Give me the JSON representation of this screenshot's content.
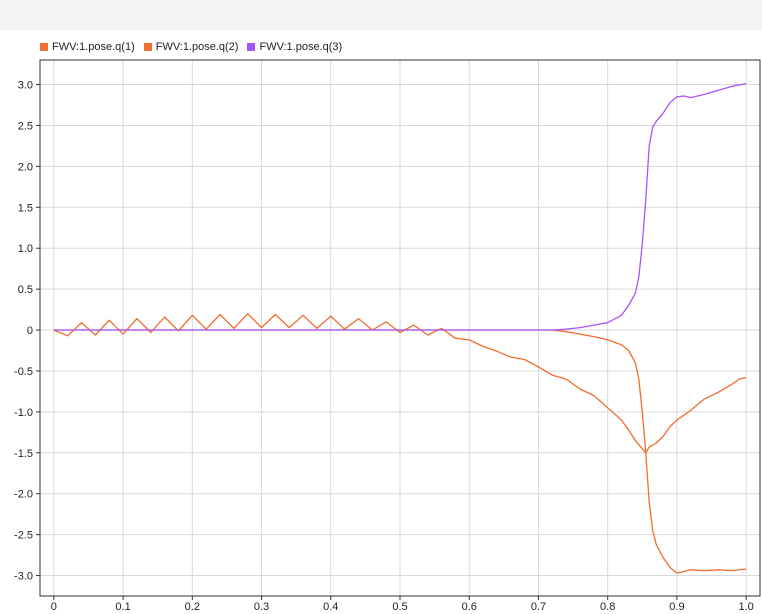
{
  "chart_data": {
    "type": "line",
    "title": "",
    "xlabel": "",
    "ylabel": "",
    "xlim": [
      -0.02,
      1.02
    ],
    "ylim": [
      -3.25,
      3.3
    ],
    "grid": true,
    "legend_position": "top-left",
    "x_ticks": [
      0,
      0.1,
      0.2,
      0.3,
      0.4,
      0.5,
      0.6,
      0.7,
      0.8,
      0.9,
      1.0
    ],
    "x_tick_labels": [
      "0",
      "0.1",
      "0.2",
      "0.3",
      "0.4",
      "0.5",
      "0.6",
      "0.7",
      "0.8",
      "0.9",
      "1.0"
    ],
    "y_ticks": [
      3.0,
      2.5,
      2.0,
      1.5,
      1.0,
      0.5,
      0,
      -0.5,
      -1.0,
      -1.5,
      -2.0,
      -2.5,
      -3.0
    ],
    "y_tick_labels": [
      "3.0",
      "2.5",
      "2.0",
      "1.5",
      "1.0",
      "0.5",
      "0",
      "-0.5",
      "-1.0",
      "-1.5",
      "-2.0",
      "-2.5",
      "-3.0"
    ],
    "series": [
      {
        "name": "FWV:1.pose.q(1)",
        "color": "#f26c2d",
        "x": [
          0,
          0.02,
          0.04,
          0.06,
          0.08,
          0.1,
          0.12,
          0.14,
          0.16,
          0.18,
          0.2,
          0.22,
          0.24,
          0.26,
          0.28,
          0.3,
          0.32,
          0.34,
          0.36,
          0.38,
          0.4,
          0.42,
          0.44,
          0.46,
          0.48,
          0.5,
          0.52,
          0.54,
          0.56,
          0.58,
          0.6,
          0.62,
          0.64,
          0.66,
          0.68,
          0.7,
          0.72,
          0.74,
          0.76,
          0.78,
          0.8,
          0.82,
          0.83,
          0.84,
          0.85,
          0.855,
          0.86,
          0.87,
          0.88,
          0.89,
          0.9,
          0.92,
          0.94,
          0.96,
          0.98,
          0.99,
          1.0
        ],
        "y": [
          0,
          -0.07,
          0.09,
          -0.06,
          0.12,
          -0.05,
          0.14,
          -0.03,
          0.16,
          -0.01,
          0.18,
          0.01,
          0.19,
          0.02,
          0.2,
          0.03,
          0.19,
          0.03,
          0.18,
          0.02,
          0.17,
          0.01,
          0.14,
          0,
          0.1,
          -0.03,
          0.06,
          -0.06,
          0.02,
          -0.1,
          -0.12,
          -0.2,
          -0.26,
          -0.33,
          -0.36,
          -0.45,
          -0.55,
          -0.6,
          -0.72,
          -0.8,
          -0.95,
          -1.1,
          -1.22,
          -1.35,
          -1.45,
          -1.5,
          -1.43,
          -1.38,
          -1.3,
          -1.18,
          -1.1,
          -0.98,
          -0.84,
          -0.76,
          -0.66,
          -0.6,
          -0.58
        ]
      },
      {
        "name": "FWV:1.pose.q(2)",
        "color": "#f26c2d",
        "x": [
          0,
          0.72,
          0.74,
          0.76,
          0.78,
          0.8,
          0.82,
          0.83,
          0.84,
          0.845,
          0.85,
          0.855,
          0.86,
          0.865,
          0.87,
          0.88,
          0.89,
          0.9,
          0.92,
          0.94,
          0.96,
          0.98,
          1.0
        ],
        "y": [
          0,
          0,
          -0.02,
          -0.05,
          -0.08,
          -0.12,
          -0.18,
          -0.25,
          -0.4,
          -0.6,
          -1.0,
          -1.5,
          -2.1,
          -2.45,
          -2.62,
          -2.78,
          -2.9,
          -2.97,
          -2.93,
          -2.94,
          -2.93,
          -2.94,
          -2.92
        ]
      },
      {
        "name": "FWV:1.pose.q(3)",
        "color": "#a855f7",
        "x": [
          0,
          0.72,
          0.74,
          0.76,
          0.78,
          0.8,
          0.82,
          0.83,
          0.84,
          0.845,
          0.85,
          0.855,
          0.86,
          0.865,
          0.87,
          0.88,
          0.89,
          0.9,
          0.91,
          0.92,
          0.94,
          0.96,
          0.98,
          1.0
        ],
        "y": [
          0,
          0,
          0.01,
          0.03,
          0.06,
          0.09,
          0.18,
          0.3,
          0.45,
          0.65,
          1.05,
          1.6,
          2.25,
          2.48,
          2.55,
          2.65,
          2.78,
          2.85,
          2.86,
          2.84,
          2.88,
          2.93,
          2.98,
          3.01
        ]
      }
    ]
  }
}
